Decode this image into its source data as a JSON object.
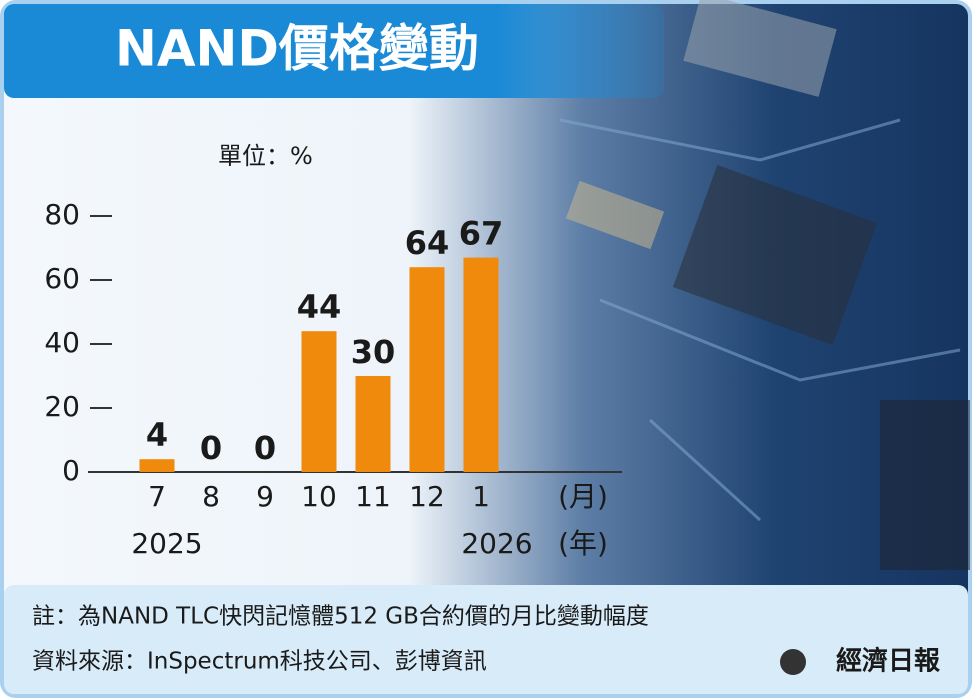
{
  "chart_data": {
    "type": "bar",
    "title": "NAND價格變動",
    "unit_label": "單位：%",
    "categories": [
      "7",
      "8",
      "9",
      "10",
      "11",
      "12",
      "1"
    ],
    "category_axis_label": "(月)",
    "years": [
      "2025",
      "2026"
    ],
    "year_axis_label": "(年)",
    "values": [
      4,
      0,
      0,
      44,
      30,
      64,
      67
    ],
    "color": "#ef8a0c",
    "ylim": [
      0,
      80
    ],
    "yticks": [
      0,
      20,
      40,
      60,
      80
    ],
    "note": "註：為NAND TLC快閃記憶體512 GB合約價的月比變動幅度",
    "source": "資料來源：InSpectrum科技公司、彭博資訊",
    "logo": "經濟日報"
  }
}
